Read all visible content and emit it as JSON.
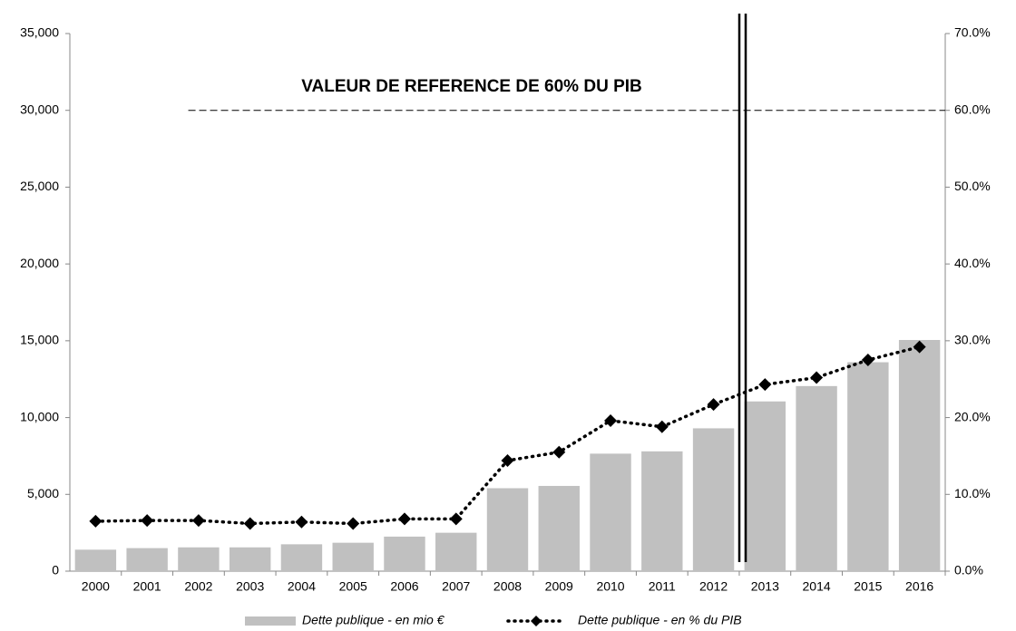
{
  "chart_data": {
    "type": "bar",
    "annotation": "VALEUR DE REFERENCE DE 60% DU PIB",
    "reference": {
      "value": 60,
      "axis": "y2"
    },
    "categories": [
      "2000",
      "2001",
      "2002",
      "2003",
      "2004",
      "2005",
      "2006",
      "2007",
      "2008",
      "2009",
      "2010",
      "2011",
      "2012",
      "2013",
      "2014",
      "2015",
      "2016"
    ],
    "series": [
      {
        "name": "Dette publique - en mio €",
        "type": "bar",
        "color": "#c0c0c0",
        "values": [
          1400,
          1500,
          1550,
          1550,
          1750,
          1850,
          2250,
          2500,
          5400,
          5550,
          7650,
          7800,
          9300,
          11050,
          12050,
          13600,
          15050
        ]
      },
      {
        "name": "Dette publique - en % du PIB",
        "type": "line",
        "axis": "y2",
        "color": "#000000",
        "values": [
          6.5,
          6.6,
          6.6,
          6.2,
          6.4,
          6.2,
          6.8,
          6.8,
          14.4,
          15.5,
          19.6,
          18.8,
          21.7,
          24.3,
          25.2,
          27.5,
          29.2
        ]
      }
    ],
    "ylim": [
      0,
      35000
    ],
    "yticks": [
      0,
      {
        "value": 5000,
        "label": "5,000"
      },
      {
        "value": 10000,
        "label": "10,000"
      },
      {
        "value": 15000,
        "label": "15,000"
      },
      {
        "value": 20000,
        "label": "20,000"
      },
      {
        "value": 25000,
        "label": "25,000"
      },
      {
        "value": 30000,
        "label": "30,000"
      },
      {
        "value": 35000,
        "label": "35,000"
      }
    ],
    "y2lim": [
      0,
      70
    ],
    "y2ticks": [
      {
        "value": 0,
        "label": "0.0%"
      },
      {
        "value": 10,
        "label": "10.0%"
      },
      {
        "value": 20,
        "label": "20.0%"
      },
      {
        "value": 30,
        "label": "30.0%"
      },
      {
        "value": 40,
        "label": "40.0%"
      },
      {
        "value": 50,
        "label": "50.0%"
      },
      {
        "value": 60,
        "label": "60.0%"
      },
      {
        "value": 70,
        "label": "70.0%"
      }
    ]
  }
}
